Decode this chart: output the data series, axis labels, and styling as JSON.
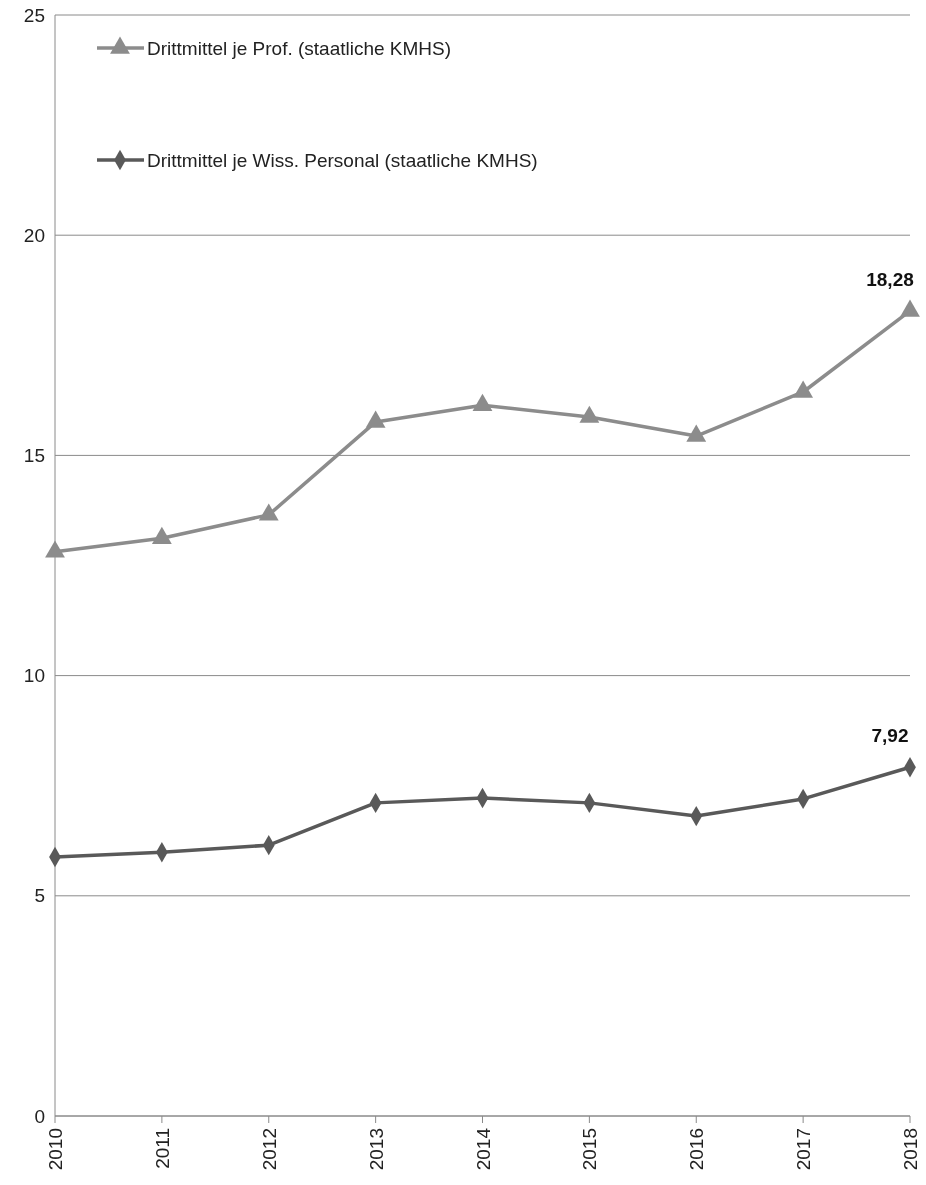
{
  "chart_data": {
    "type": "line",
    "categories": [
      "2010",
      "2011",
      "2012",
      "2013",
      "2014",
      "2015",
      "2016",
      "2017",
      "2018"
    ],
    "series": [
      {
        "name": "Drittmittel je Prof. (staatliche KMHS)",
        "color": "#8c8c8c",
        "marker": "triangle",
        "values": [
          12.81,
          13.12,
          13.65,
          15.76,
          16.14,
          15.87,
          15.44,
          16.44,
          18.28
        ],
        "value_labels": [
          null,
          null,
          null,
          null,
          null,
          null,
          null,
          null,
          "18,28"
        ]
      },
      {
        "name": "Drittmittel je Wiss. Personal (staatliche KMHS)",
        "color": "#595959",
        "marker": "diamond",
        "values": [
          5.88,
          5.99,
          6.15,
          7.11,
          7.22,
          7.11,
          6.81,
          7.2,
          7.92
        ],
        "value_labels": [
          null,
          null,
          null,
          null,
          null,
          null,
          null,
          null,
          "7,92"
        ]
      }
    ],
    "ylim": [
      0,
      25
    ],
    "yticks": [
      0,
      5,
      10,
      15,
      20,
      25
    ],
    "grid": "y",
    "legend": "top left",
    "line_style": "solid"
  }
}
